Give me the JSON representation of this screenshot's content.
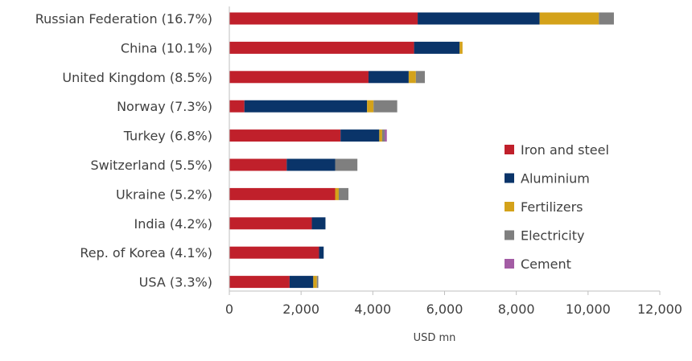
{
  "chart_data": {
    "type": "bar",
    "orientation": "horizontal",
    "stacked": true,
    "title": "",
    "xlabel": "USD mn",
    "ylabel": "",
    "xlim": [
      0,
      12000
    ],
    "xticks": [
      0,
      2000,
      4000,
      6000,
      8000,
      10000,
      12000
    ],
    "xtick_labels": [
      "0",
      "2,000",
      "4,000",
      "6,000",
      "8,000",
      "10,000",
      "12,000"
    ],
    "grid": false,
    "legend_position": "right",
    "categories": [
      "Russian Federation (16.7%)",
      "China (10.1%)",
      "United Kingdom (8.5%)",
      "Norway (7.3%)",
      "Turkey (6.8%)",
      "Switzerland (5.5%)",
      "Ukraine (5.2%)",
      "India (4.2%)",
      "Rep. of Korea (4.1%)",
      "USA (3.3%)"
    ],
    "series": [
      {
        "name": "Iron and steel",
        "color": "#c0202b",
        "values": [
          5250,
          5150,
          3880,
          420,
          3100,
          1600,
          2950,
          2300,
          2500,
          1680
        ]
      },
      {
        "name": "Aluminium",
        "color": "#0a3469",
        "values": [
          3400,
          1270,
          1120,
          3420,
          1080,
          1350,
          0,
          380,
          130,
          660
        ]
      },
      {
        "name": "Fertilizers",
        "color": "#d4a21a",
        "values": [
          1650,
          80,
          200,
          180,
          80,
          0,
          100,
          0,
          0,
          100
        ]
      },
      {
        "name": "Electricity",
        "color": "#7f7f7f",
        "values": [
          420,
          0,
          250,
          660,
          70,
          620,
          270,
          0,
          0,
          40
        ]
      },
      {
        "name": "Cement",
        "color": "#a35ca4",
        "values": [
          0,
          0,
          0,
          0,
          60,
          0,
          0,
          0,
          0,
          0
        ]
      }
    ]
  }
}
